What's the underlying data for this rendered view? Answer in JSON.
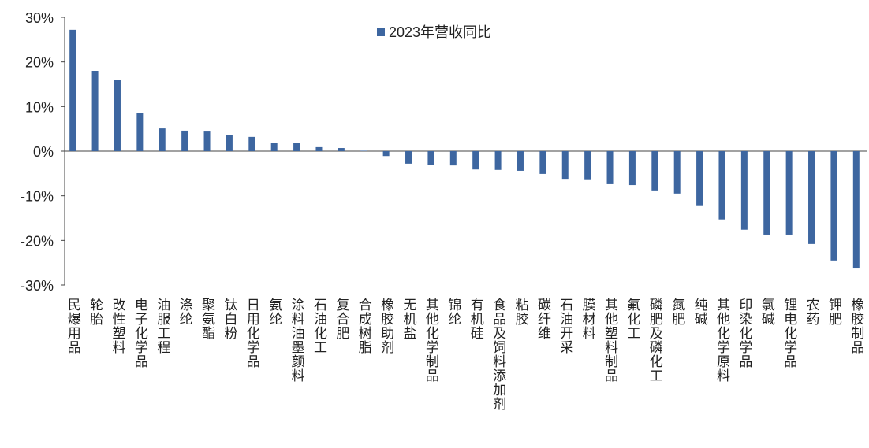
{
  "chart_data": {
    "type": "bar",
    "series": [
      {
        "name": "2023年营收同比",
        "color": "#3d66a0",
        "values": [
          27.2,
          18.0,
          15.9,
          8.5,
          5.1,
          4.6,
          4.4,
          3.7,
          3.2,
          1.9,
          1.9,
          0.9,
          0.7,
          0.1,
          -1.1,
          -2.8,
          -3.0,
          -3.2,
          -4.1,
          -4.2,
          -4.4,
          -5.1,
          -6.2,
          -6.3,
          -7.4,
          -7.6,
          -8.8,
          -9.5,
          -12.3,
          -15.3,
          -17.6,
          -18.7,
          -18.7,
          -20.8,
          -24.5,
          -26.3
        ]
      }
    ],
    "categories": [
      "民爆用品",
      "轮胎",
      "改性塑料",
      "电子化学品",
      "油服工程",
      "涤纶",
      "聚氨酯",
      "钛白粉",
      "日用化学品",
      "氨纶",
      "涂料油墨颜料",
      "石油化工",
      "复合肥",
      "合成树脂",
      "橡胶助剂",
      "无机盐",
      "其他化学制品",
      "锦纶",
      "有机硅",
      "食品及饲料添加剂",
      "粘胶",
      "碳纤维",
      "石油开采",
      "膜材料",
      "其他塑料制品",
      "氟化工",
      "磷肥及磷化工",
      "氮肥",
      "纯碱",
      "其他化学原料",
      "印染化学品",
      "氯碱",
      "锂电化学品",
      "农药",
      "钾肥",
      "橡胶制品"
    ],
    "ylim": [
      -30,
      30
    ],
    "yticks": [
      {
        "value": -30,
        "label": "-30%"
      },
      {
        "value": -20,
        "label": "-20%"
      },
      {
        "value": -10,
        "label": "-10%"
      },
      {
        "value": 0,
        "label": "0%"
      },
      {
        "value": 10,
        "label": "10%"
      },
      {
        "value": 20,
        "label": "20%"
      },
      {
        "value": 30,
        "label": "30%"
      }
    ],
    "legend": "top"
  }
}
